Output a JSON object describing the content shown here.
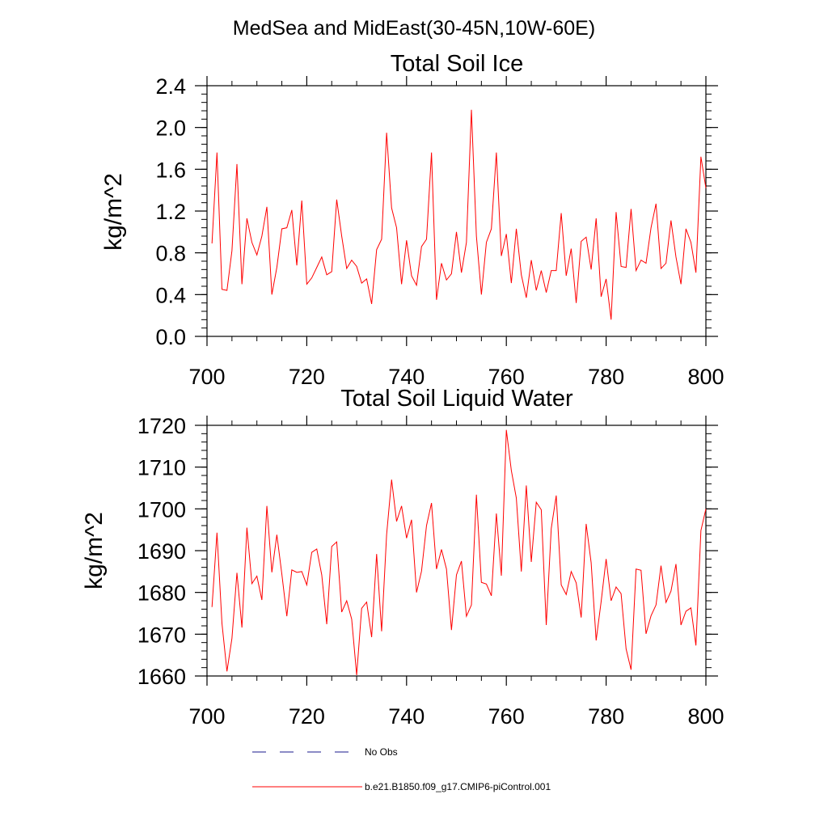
{
  "figure": {
    "title": "MedSea and MidEast(30-45N,10W-60E)"
  },
  "colors": {
    "series": "#ff0000",
    "obs": "#1a1a8c",
    "axes": "#000000"
  },
  "chart_data": [
    {
      "type": "line",
      "title": "Total Soil Ice",
      "xlabel": "",
      "ylabel": "kg/m^2",
      "xlim": [
        700,
        800
      ],
      "ylim": [
        0.0,
        2.4
      ],
      "xticks": [
        "700",
        "720",
        "740",
        "760",
        "780",
        "800"
      ],
      "xtick_values": [
        700,
        720,
        740,
        760,
        780,
        800
      ],
      "yticks": [
        "0.0",
        "0.4",
        "0.8",
        "1.2",
        "1.6",
        "2.0",
        "2.4"
      ],
      "ytick_values": [
        0.0,
        0.4,
        0.8,
        1.2,
        1.6,
        2.0,
        2.4
      ],
      "x_start": 701,
      "x_step": 1,
      "series": [
        {
          "name": "b.e21.B1850.f09_g17.CMIP6-piControl.001",
          "values": [
            0.89,
            1.76,
            0.45,
            0.44,
            0.82,
            1.65,
            0.5,
            1.13,
            0.9,
            0.78,
            0.96,
            1.24,
            0.4,
            0.66,
            1.03,
            1.04,
            1.21,
            0.68,
            1.3,
            0.5,
            0.56,
            0.66,
            0.76,
            0.59,
            0.62,
            1.31,
            0.96,
            0.65,
            0.73,
            0.67,
            0.51,
            0.55,
            0.31,
            0.83,
            0.93,
            1.95,
            1.23,
            1.04,
            0.5,
            0.92,
            0.58,
            0.49,
            0.86,
            0.93,
            1.76,
            0.35,
            0.7,
            0.54,
            0.6,
            1.0,
            0.61,
            0.9,
            2.17,
            0.96,
            0.4,
            0.9,
            1.03,
            1.76,
            0.77,
            0.98,
            0.51,
            1.03,
            0.59,
            0.37,
            0.73,
            0.44,
            0.63,
            0.42,
            0.63,
            0.63,
            1.18,
            0.58,
            0.84,
            0.32,
            0.91,
            0.95,
            0.64,
            1.13,
            0.38,
            0.55,
            0.16,
            1.19,
            0.67,
            0.66,
            1.22,
            0.63,
            0.73,
            0.7,
            1.04,
            1.27,
            0.65,
            0.7,
            1.11,
            0.76,
            0.5,
            1.03,
            0.9,
            0.61,
            1.72,
            1.42
          ]
        }
      ]
    },
    {
      "type": "line",
      "title": "Total Soil Liquid Water",
      "xlabel": "",
      "ylabel": "kg/m^2",
      "xlim": [
        700,
        800
      ],
      "ylim": [
        1660,
        1720
      ],
      "xticks": [
        "700",
        "720",
        "740",
        "760",
        "780",
        "800"
      ],
      "xtick_values": [
        700,
        720,
        740,
        760,
        780,
        800
      ],
      "yticks": [
        "1660",
        "1670",
        "1680",
        "1690",
        "1700",
        "1710",
        "1720"
      ],
      "ytick_values": [
        1660,
        1670,
        1680,
        1690,
        1700,
        1710,
        1720
      ],
      "x_start": 701,
      "x_step": 1,
      "series": [
        {
          "name": "b.e21.B1850.f09_g17.CMIP6-piControl.001",
          "values": [
            1676.5,
            1694.3,
            1672.6,
            1661.1,
            1669.0,
            1684.7,
            1671.6,
            1695.5,
            1682.1,
            1683.9,
            1678.2,
            1700.7,
            1684.8,
            1693.8,
            1684.4,
            1674.3,
            1685.4,
            1684.8,
            1685.0,
            1681.8,
            1689.6,
            1690.4,
            1684.2,
            1672.4,
            1691.0,
            1692.1,
            1675.3,
            1678.0,
            1673.6,
            1660.2,
            1676.2,
            1677.7,
            1669.3,
            1689.2,
            1670.7,
            1693.8,
            1707.0,
            1697.0,
            1700.7,
            1693.0,
            1697.4,
            1680.0,
            1685.1,
            1696.0,
            1701.4,
            1685.6,
            1690.3,
            1685.6,
            1671.0,
            1684.2,
            1687.5,
            1674.3,
            1677.0,
            1703.4,
            1682.4,
            1682.0,
            1679.2,
            1698.9,
            1684.0,
            1718.9,
            1709.2,
            1702.6,
            1685.0,
            1705.6,
            1687.3,
            1701.6,
            1699.8,
            1672.2,
            1695.3,
            1703.2,
            1681.8,
            1679.5,
            1685.0,
            1682.3,
            1674.0,
            1696.4,
            1687.1,
            1668.5,
            1677.8,
            1688.0,
            1678.0,
            1681.3,
            1679.7,
            1666.5,
            1661.5,
            1685.6,
            1685.3,
            1670.1,
            1674.4,
            1677.0,
            1686.4,
            1677.6,
            1680.3,
            1686.8,
            1672.2,
            1675.5,
            1676.3,
            1667.3,
            1694.8,
            1700.0
          ]
        }
      ]
    }
  ],
  "legend": {
    "items": [
      {
        "label": "No Obs",
        "style": "dashed"
      },
      {
        "label": "b.e21.B1850.f09_g17.CMIP6-piControl.001",
        "style": "solid"
      }
    ]
  }
}
